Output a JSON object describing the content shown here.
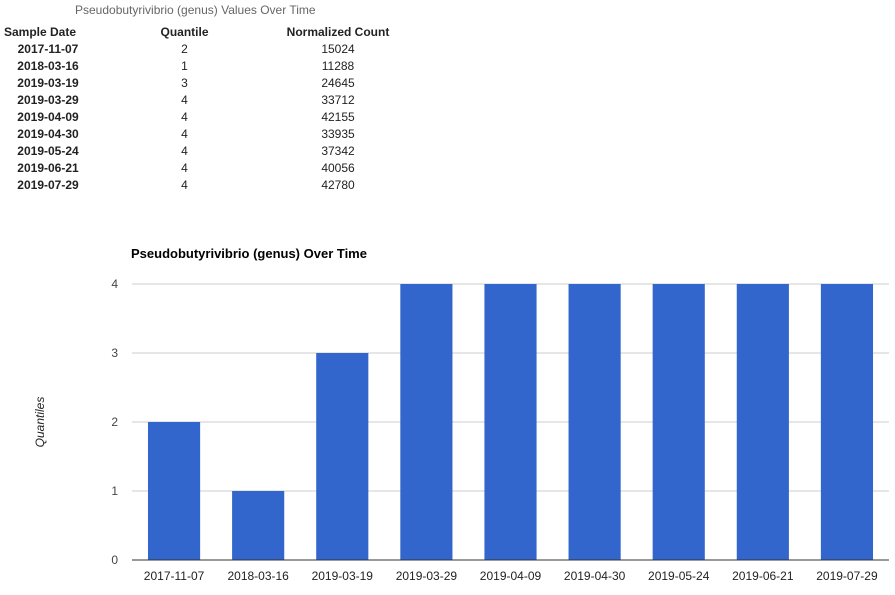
{
  "table": {
    "caption": "Pseudobutyrivibrio (genus) Values Over Time",
    "headers": [
      "Sample Date",
      "Quantile",
      "Normalized Count"
    ],
    "rows": [
      [
        "2017-11-07",
        "2",
        "15024"
      ],
      [
        "2018-03-16",
        "1",
        "11288"
      ],
      [
        "2019-03-19",
        "3",
        "24645"
      ],
      [
        "2019-03-29",
        "4",
        "33712"
      ],
      [
        "2019-04-09",
        "4",
        "42155"
      ],
      [
        "2019-04-30",
        "4",
        "33935"
      ],
      [
        "2019-05-24",
        "4",
        "37342"
      ],
      [
        "2019-06-21",
        "4",
        "40056"
      ],
      [
        "2019-07-29",
        "4",
        "42780"
      ]
    ]
  },
  "chart_data": {
    "type": "bar",
    "title": "Pseudobutyrivibrio (genus) Over Time",
    "xlabel": "",
    "ylabel": "Quantiles",
    "categories": [
      "2017-11-07",
      "2018-03-16",
      "2019-03-19",
      "2019-03-29",
      "2019-04-09",
      "2019-04-30",
      "2019-05-24",
      "2019-06-21",
      "2019-07-29"
    ],
    "values": [
      2,
      1,
      3,
      4,
      4,
      4,
      4,
      4,
      4
    ],
    "ylim": [
      0,
      4
    ],
    "yticks": [
      "0",
      "1",
      "2",
      "3",
      "4"
    ],
    "grid": true,
    "bar_color": "#3366cc",
    "grid_color": "#cccccc"
  }
}
